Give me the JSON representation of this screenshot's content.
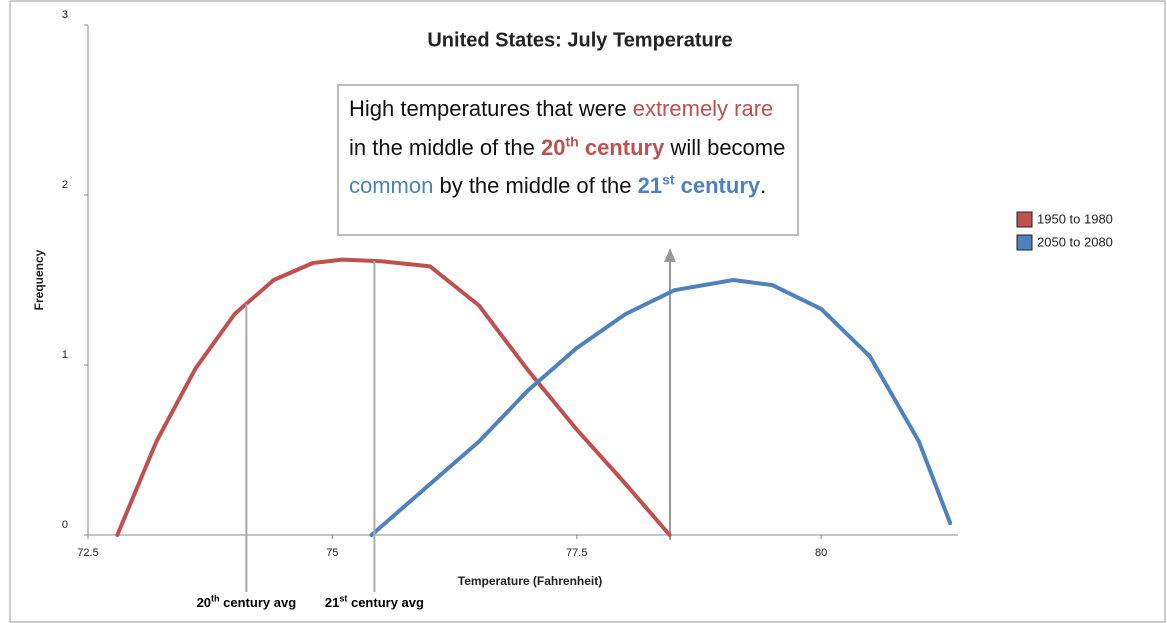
{
  "chart_data": {
    "type": "line",
    "title": "United States: July Temperature",
    "xlabel": "Temperature (Fahrenheit)",
    "ylabel": "Frequency",
    "xlim": [
      72.5,
      81.4
    ],
    "xticks": [
      72.5,
      75,
      77.5,
      80
    ],
    "ylim": [
      0,
      3
    ],
    "yticks": [
      0,
      1,
      2,
      3
    ],
    "legend": "top-right",
    "series": [
      {
        "name": "1950 to 1980",
        "color": "#c0504d",
        "x": [
          72.8,
          73.2,
          73.6,
          74.0,
          74.4,
          74.8,
          75.1,
          75.5,
          76.0,
          76.5,
          77.0,
          77.5,
          78.0,
          78.45
        ],
        "values": [
          0,
          0.55,
          0.98,
          1.3,
          1.5,
          1.6,
          1.62,
          1.61,
          1.58,
          1.35,
          0.97,
          0.62,
          0.3,
          0
        ]
      },
      {
        "name": "2050 to 2080",
        "color": "#4f81bd",
        "x": [
          75.4,
          76.0,
          76.5,
          77.0,
          77.5,
          78.0,
          78.5,
          79.1,
          79.5,
          80.0,
          80.5,
          81.0,
          81.32
        ],
        "values": [
          0,
          0.3,
          0.55,
          0.85,
          1.1,
          1.3,
          1.44,
          1.5,
          1.47,
          1.33,
          1.05,
          0.55,
          0.07
        ]
      }
    ],
    "avg_lines": [
      {
        "x": 74.12,
        "label": [
          "20",
          "th",
          " century avg"
        ]
      },
      {
        "x": 75.43,
        "label": [
          "21",
          "st",
          " century avg"
        ]
      }
    ],
    "annotation": [
      "High temperatures that were ",
      "extremely rare",
      " in the middle of the ",
      "20",
      "th",
      " century",
      " will become ",
      "common",
      " by the middle of the ",
      "21",
      "st",
      " century",
      "."
    ]
  }
}
